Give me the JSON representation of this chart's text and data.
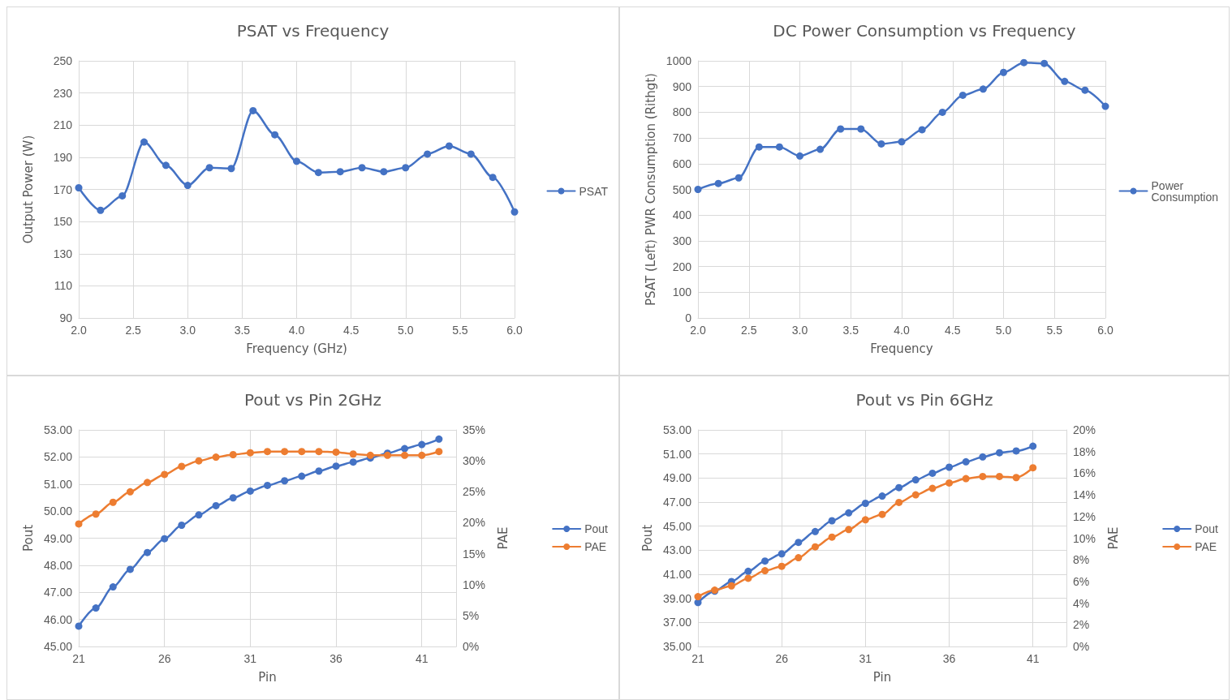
{
  "chart_data": [
    {
      "type": "line",
      "title": "PSAT vs Frequency",
      "xlabel": "Frequency (GHz)",
      "ylabel": "Output Power (W)",
      "x": [
        2.0,
        2.2,
        2.4,
        2.6,
        2.8,
        3.0,
        3.2,
        3.4,
        3.6,
        3.8,
        4.0,
        4.2,
        4.4,
        4.6,
        4.8,
        5.0,
        5.2,
        5.4,
        5.6,
        5.8,
        6.0
      ],
      "series": [
        {
          "name": "PSAT",
          "color": "#4472c4",
          "values": [
            171,
            157,
            166,
            199.5,
            185,
            172.5,
            183.5,
            183,
            219,
            204,
            187.5,
            180.5,
            181,
            183.5,
            181,
            183.5,
            192,
            197,
            192,
            177.5,
            156
          ]
        }
      ],
      "xlim": [
        2,
        6
      ],
      "xticks": [
        {
          "value": 2,
          "label": "2.0"
        },
        {
          "value": 2.5,
          "label": "2.5"
        },
        {
          "value": 3,
          "label": "3.0"
        },
        {
          "value": 3.5,
          "label": "3.5"
        },
        {
          "value": 4,
          "label": "4.0"
        },
        {
          "value": 4.5,
          "label": "4.5"
        },
        {
          "value": 5,
          "label": "5.0"
        },
        {
          "value": 5.5,
          "label": "5.5"
        },
        {
          "value": 6,
          "label": "6.0"
        }
      ],
      "ylim": [
        90,
        250
      ],
      "yticks": [
        90,
        110,
        130,
        150,
        170,
        190,
        210,
        230,
        250
      ],
      "grid": true,
      "legend": "right",
      "marker": "circle",
      "line_style": "solid"
    },
    {
      "type": "line",
      "title": "DC Power Consumption vs Frequency",
      "xlabel": "Frequency",
      "ylabel": "PSAT (Left) PWR Consumption (Rithgt)",
      "x": [
        2.0,
        2.2,
        2.4,
        2.6,
        2.8,
        3.0,
        3.2,
        3.4,
        3.6,
        3.8,
        4.0,
        4.2,
        4.4,
        4.6,
        4.8,
        5.0,
        5.2,
        5.4,
        5.6,
        5.8,
        6.0
      ],
      "series": [
        {
          "name": "Power Consumption",
          "color": "#4472c4",
          "values": [
            500,
            523,
            545,
            665,
            665,
            630,
            656,
            735,
            735,
            677,
            685,
            732,
            800,
            866,
            890,
            955,
            993,
            990,
            920,
            886,
            823
          ]
        }
      ],
      "xlim": [
        2,
        6
      ],
      "xticks": [
        {
          "value": 2,
          "label": "2.0"
        },
        {
          "value": 2.5,
          "label": "2.5"
        },
        {
          "value": 3,
          "label": "3.0"
        },
        {
          "value": 3.5,
          "label": "3.5"
        },
        {
          "value": 4,
          "label": "4.0"
        },
        {
          "value": 4.5,
          "label": "4.5"
        },
        {
          "value": 5,
          "label": "5.0"
        },
        {
          "value": 5.5,
          "label": "5.5"
        },
        {
          "value": 6,
          "label": "6.0"
        }
      ],
      "ylim": [
        0,
        1000
      ],
      "yticks": [
        0,
        100,
        200,
        300,
        400,
        500,
        600,
        700,
        800,
        900,
        1000
      ],
      "grid": true,
      "legend": "right",
      "marker": "circle",
      "line_style": "solid"
    },
    {
      "type": "line",
      "title": "Pout vs Pin 2GHz",
      "xlabel": "Pin",
      "ylabel": "Pout",
      "y2label": "PAE",
      "x": [
        21,
        22,
        23,
        24,
        25,
        26,
        27,
        28,
        29,
        30,
        31,
        32,
        33,
        34,
        35,
        36,
        37,
        38,
        39,
        40,
        41,
        42
      ],
      "series": [
        {
          "name": "Pout",
          "color": "#4472c4",
          "values": [
            45.75,
            46.42,
            47.2,
            47.85,
            48.47,
            48.98,
            49.48,
            49.86,
            50.2,
            50.49,
            50.74,
            50.95,
            51.12,
            51.29,
            51.48,
            51.66,
            51.81,
            51.96,
            52.14,
            52.31,
            52.46,
            52.66
          ]
        },
        {
          "name": "PAE",
          "color": "#ed7d31",
          "axis": "y2",
          "values": [
            19.8,
            21.4,
            23.3,
            25.0,
            26.5,
            27.8,
            29.1,
            30.0,
            30.6,
            31.0,
            31.3,
            31.5,
            31.5,
            31.5,
            31.5,
            31.4,
            31.1,
            30.9,
            30.9,
            30.9,
            30.9,
            31.5
          ]
        }
      ],
      "xlim": [
        21,
        43
      ],
      "xticks": [
        21,
        26,
        31,
        36,
        41
      ],
      "ylim": [
        45,
        53
      ],
      "yticks": [
        {
          "value": 45,
          "label": "45.00"
        },
        {
          "value": 46,
          "label": "46.00"
        },
        {
          "value": 47,
          "label": "47.00"
        },
        {
          "value": 48,
          "label": "48.00"
        },
        {
          "value": 49,
          "label": "49.00"
        },
        {
          "value": 50,
          "label": "50.00"
        },
        {
          "value": 51,
          "label": "51.00"
        },
        {
          "value": 52,
          "label": "52.00"
        },
        {
          "value": 53,
          "label": "53.00"
        }
      ],
      "y2lim": [
        0,
        35
      ],
      "y2ticks": [
        {
          "value": 0,
          "label": "0%"
        },
        {
          "value": 5,
          "label": "5%"
        },
        {
          "value": 10,
          "label": "10%"
        },
        {
          "value": 15,
          "label": "15%"
        },
        {
          "value": 20,
          "label": "20%"
        },
        {
          "value": 25,
          "label": "25%"
        },
        {
          "value": 30,
          "label": "30%"
        },
        {
          "value": 35,
          "label": "35%"
        }
      ],
      "grid": true,
      "legend": "right",
      "marker": "circle",
      "line_style": "solid"
    },
    {
      "type": "line",
      "title": "Pout vs Pin 6GHz",
      "xlabel": "Pin",
      "ylabel": "Pout",
      "y2label": "PAE",
      "x": [
        21,
        22,
        23,
        24,
        25,
        26,
        27,
        28,
        29,
        30,
        31,
        32,
        33,
        34,
        35,
        36,
        37,
        38,
        39,
        40,
        41
      ],
      "series": [
        {
          "name": "Pout",
          "color": "#4472c4",
          "values": [
            38.65,
            39.6,
            40.4,
            41.25,
            42.1,
            42.7,
            43.65,
            44.55,
            45.45,
            46.1,
            46.9,
            47.5,
            48.2,
            48.85,
            49.4,
            49.9,
            50.35,
            50.75,
            51.1,
            51.25,
            51.65
          ]
        },
        {
          "name": "PAE",
          "color": "#ed7d31",
          "axis": "y2",
          "values": [
            4.6,
            5.2,
            5.6,
            6.3,
            7.0,
            7.4,
            8.2,
            9.2,
            10.1,
            10.8,
            11.7,
            12.2,
            13.3,
            14.0,
            14.6,
            15.1,
            15.5,
            15.7,
            15.7,
            15.6,
            16.5
          ]
        }
      ],
      "xlim": [
        21,
        43
      ],
      "xticks": [
        21,
        26,
        31,
        36,
        41
      ],
      "ylim": [
        35,
        53
      ],
      "yticks": [
        {
          "value": 35,
          "label": "35.00"
        },
        {
          "value": 37,
          "label": "37.00"
        },
        {
          "value": 39,
          "label": "39.00"
        },
        {
          "value": 41,
          "label": "41.00"
        },
        {
          "value": 43,
          "label": "43.00"
        },
        {
          "value": 45,
          "label": "45.00"
        },
        {
          "value": 47,
          "label": "47.00"
        },
        {
          "value": 49,
          "label": "49.00"
        },
        {
          "value": 51,
          "label": "51.00"
        },
        {
          "value": 53,
          "label": "53.00"
        }
      ],
      "y2lim": [
        0,
        20
      ],
      "y2ticks": [
        {
          "value": 0,
          "label": "0%"
        },
        {
          "value": 2,
          "label": "2%"
        },
        {
          "value": 4,
          "label": "4%"
        },
        {
          "value": 6,
          "label": "6%"
        },
        {
          "value": 8,
          "label": "8%"
        },
        {
          "value": 10,
          "label": "10%"
        },
        {
          "value": 12,
          "label": "12%"
        },
        {
          "value": 14,
          "label": "14%"
        },
        {
          "value": 16,
          "label": "16%"
        },
        {
          "value": 18,
          "label": "18%"
        },
        {
          "value": 20,
          "label": "20%"
        }
      ],
      "grid": true,
      "legend": "right",
      "marker": "circle",
      "line_style": "solid"
    }
  ]
}
